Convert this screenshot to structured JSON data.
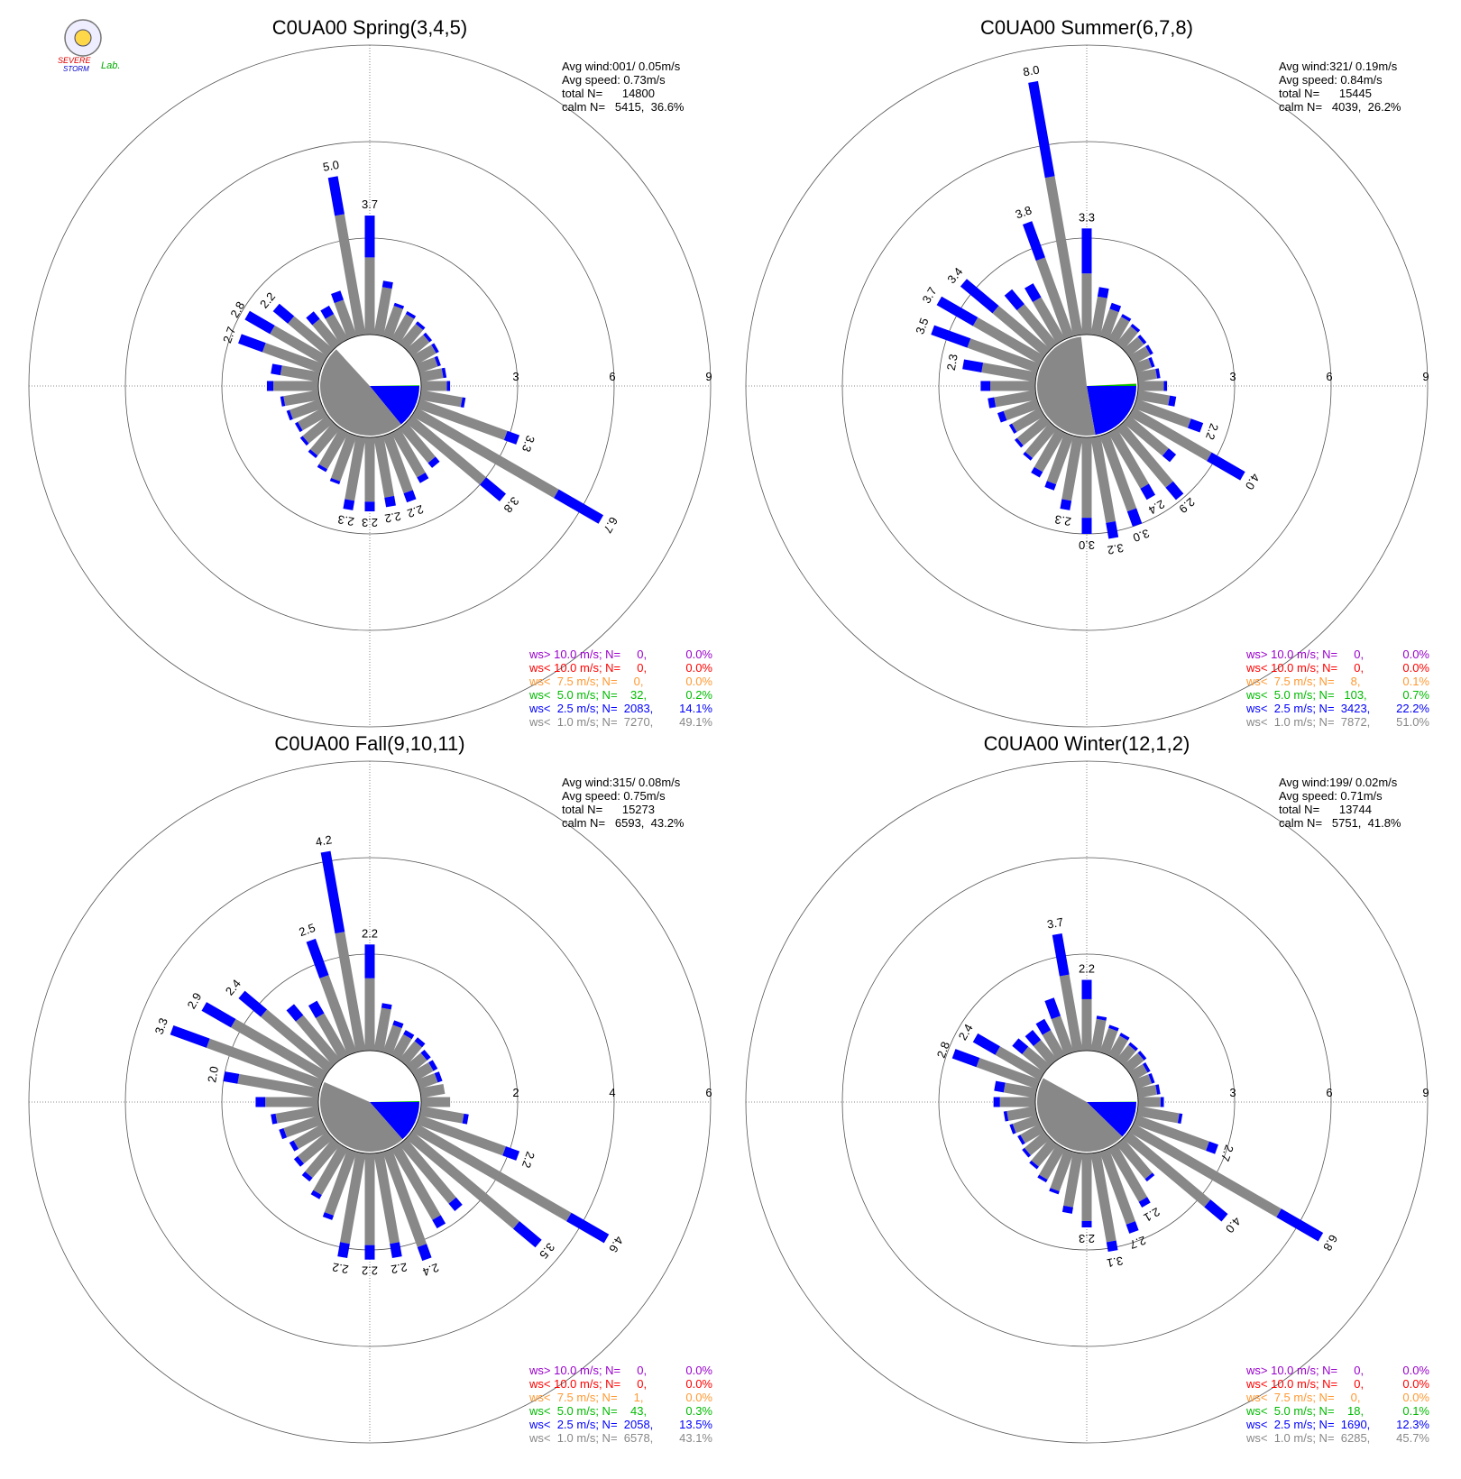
{
  "logo": {
    "line1": "SEVERE",
    "line2": "STORM",
    "line3": "Lab."
  },
  "chart_data": [
    {
      "type": "windrose",
      "title": "C0UA00 Spring(3,4,5)",
      "info": [
        "Avg wind:001/ 0.05m/s",
        "Avg speed: 0.73m/s",
        "total N=      14800",
        "calm N=   5415,  36.6%"
      ],
      "ylim": [
        0,
        9
      ],
      "yticks": [
        3,
        6,
        9
      ],
      "series": [
        {
          "color": "#888888",
          "values": [
            2.4,
            1.5,
            1.0,
            0.9,
            0.8,
            0.7,
            0.7,
            0.6,
            0.7,
            0.8,
            1.3,
            2.9,
            5.1,
            3.0,
            1.4,
            1.6,
            1.9,
            1.9,
            2.0,
            2.0,
            1.5,
            1.3,
            1.1,
            1.0,
            0.9,
            1.0,
            1.1,
            1.4,
            1.2,
            1.9,
            1.9,
            1.6,
            1.0,
            0.9,
            1.2,
            3.8
          ]
        },
        {
          "color": "#0000ff",
          "values": [
            1.3,
            0.2,
            0.1,
            0.1,
            0.1,
            0.1,
            0.1,
            0.1,
            0.1,
            0.1,
            0.1,
            0.4,
            1.6,
            0.8,
            0.2,
            0.2,
            0.3,
            0.3,
            0.3,
            0.3,
            0.1,
            0.1,
            0.1,
            0.1,
            0.1,
            0.1,
            0.1,
            0.2,
            0.3,
            0.8,
            0.9,
            0.6,
            0.3,
            0.3,
            0.3,
            1.2
          ]
        }
      ],
      "bar_labels": [
        "3.7",
        null,
        null,
        null,
        null,
        null,
        null,
        null,
        null,
        null,
        null,
        "3.3",
        "6.7",
        "3.8",
        null,
        null,
        "2.2",
        "2.2",
        "2.3",
        "2.3",
        null,
        null,
        null,
        null,
        null,
        null,
        null,
        null,
        null,
        "2.7",
        "2.8",
        "2.2",
        null,
        null,
        null,
        "5.0"
      ],
      "legend": [
        {
          "text": "ws> 10.0 m/s; N=     0,",
          "percent": 0.0,
          "value_label": "0.0%",
          "color": "#9900cc"
        },
        {
          "text": "ws< 10.0 m/s; N=     0,",
          "percent": 0.0,
          "value_label": "0.0%",
          "color": "#ff0000"
        },
        {
          "text": "ws<  7.5 m/s; N=     0,",
          "percent": 0.0,
          "value_label": "0.0%",
          "color": "#ff9933"
        },
        {
          "text": "ws<  5.0 m/s; N=    32,",
          "percent": 0.2,
          "value_label": "0.2%",
          "color": "#00bb00"
        },
        {
          "text": "ws<  2.5 m/s; N=  2083,",
          "percent": 14.1,
          "value_label": "14.1%",
          "color": "#0000ff"
        },
        {
          "text": "ws<  1.0 m/s; N=  7270,",
          "percent": 49.1,
          "value_label": "49.1%",
          "color": "#888888"
        }
      ]
    },
    {
      "type": "windrose",
      "title": "C0UA00 Summer(6,7,8)",
      "info": [
        "Avg wind:321/ 0.19m/s",
        "Avg speed: 0.84m/s",
        "total N=      15445",
        "calm N=   4039,  26.2%"
      ],
      "ylim": [
        0,
        9
      ],
      "yticks": [
        3,
        6,
        9
      ],
      "series": [
        {
          "color": "#888888",
          "values": [
            1.9,
            1.2,
            0.9,
            0.8,
            0.7,
            0.6,
            0.6,
            0.5,
            0.6,
            0.8,
            1.0,
            1.8,
            2.8,
            1.6,
            2.4,
            2.0,
            2.5,
            2.7,
            2.5,
            2.0,
            1.6,
            1.4,
            1.2,
            1.1,
            1.0,
            1.1,
            1.3,
            1.4,
            1.7,
            2.3,
            2.4,
            2.1,
            1.6,
            1.5,
            2.6,
            5.0
          ]
        },
        {
          "color": "#0000ff",
          "values": [
            1.4,
            0.3,
            0.2,
            0.1,
            0.1,
            0.1,
            0.1,
            0.1,
            0.1,
            0.1,
            0.2,
            0.4,
            1.2,
            0.3,
            0.5,
            0.4,
            0.5,
            0.5,
            0.5,
            0.3,
            0.2,
            0.2,
            0.1,
            0.1,
            0.1,
            0.2,
            0.2,
            0.3,
            0.6,
            1.2,
            1.3,
            1.3,
            0.6,
            0.5,
            1.2,
            3.0
          ]
        }
      ],
      "bar_labels": [
        "3.3",
        null,
        null,
        null,
        null,
        null,
        null,
        null,
        null,
        null,
        null,
        "2.2",
        "4.0",
        null,
        "2.9",
        "2.4",
        "3.0",
        "3.2",
        "3.0",
        "2.3",
        null,
        null,
        null,
        null,
        null,
        null,
        null,
        null,
        "2.3",
        "3.5",
        "3.7",
        "3.4",
        null,
        null,
        "3.8",
        "8.0"
      ],
      "legend": [
        {
          "text": "ws> 10.0 m/s; N=     0,",
          "percent": 0.0,
          "value_label": "0.0%",
          "color": "#9900cc"
        },
        {
          "text": "ws< 10.0 m/s; N=     0,",
          "percent": 0.0,
          "value_label": "0.0%",
          "color": "#ff0000"
        },
        {
          "text": "ws<  7.5 m/s; N=     8,",
          "percent": 0.1,
          "value_label": "0.1%",
          "color": "#ff9933"
        },
        {
          "text": "ws<  5.0 m/s; N=   103,",
          "percent": 0.7,
          "value_label": "0.7%",
          "color": "#00bb00"
        },
        {
          "text": "ws<  2.5 m/s; N=  3423,",
          "percent": 22.2,
          "value_label": "22.2%",
          "color": "#0000ff"
        },
        {
          "text": "ws<  1.0 m/s; N=  7872,",
          "percent": 51.0,
          "value_label": "51.0%",
          "color": "#888888"
        }
      ]
    },
    {
      "type": "windrose",
      "title": "C0UA00 Fall(9,10,11)",
      "info": [
        "Avg wind:315/ 0.08m/s",
        "Avg speed: 0.75m/s",
        "total N=      15273",
        "calm N=   6593,  43.2%"
      ],
      "ylim": [
        0,
        6
      ],
      "yticks": [
        2,
        4,
        6
      ],
      "series": [
        {
          "color": "#888888",
          "values": [
            1.5,
            0.9,
            0.6,
            0.5,
            0.5,
            0.4,
            0.4,
            0.4,
            0.5,
            0.6,
            0.9,
            1.9,
            3.7,
            2.9,
            1.6,
            1.7,
            2.1,
            1.9,
            1.9,
            1.9,
            1.4,
            1.1,
            0.9,
            0.8,
            0.7,
            0.8,
            0.9,
            1.1,
            1.7,
            2.5,
            2.2,
            1.8,
            1.2,
            1.0,
            1.7,
            2.5
          ]
        },
        {
          "color": "#0000ff",
          "values": [
            0.7,
            0.1,
            0.1,
            0.1,
            0.1,
            0.1,
            0.1,
            0.1,
            0.0,
            0.0,
            0.1,
            0.3,
            0.9,
            0.6,
            0.2,
            0.2,
            0.3,
            0.3,
            0.3,
            0.3,
            0.1,
            0.1,
            0.1,
            0.1,
            0.1,
            0.1,
            0.1,
            0.2,
            0.3,
            0.8,
            0.7,
            0.6,
            0.3,
            0.3,
            0.8,
            1.7
          ]
        }
      ],
      "bar_labels": [
        "2.2",
        null,
        null,
        null,
        null,
        null,
        null,
        null,
        null,
        null,
        null,
        "2.2",
        "4.6",
        "3.5",
        null,
        null,
        "2.4",
        "2.2",
        "2.2",
        "2.2",
        null,
        null,
        null,
        null,
        null,
        null,
        null,
        null,
        "2.0",
        "3.3",
        "2.9",
        "2.4",
        null,
        null,
        "2.5",
        "4.2"
      ],
      "legend": [
        {
          "text": "ws> 10.0 m/s; N=     0,",
          "percent": 0.0,
          "value_label": "0.0%",
          "color": "#9900cc"
        },
        {
          "text": "ws< 10.0 m/s; N=     0,",
          "percent": 0.0,
          "value_label": "0.0%",
          "color": "#ff0000"
        },
        {
          "text": "ws<  7.5 m/s; N=     1,",
          "percent": 0.0,
          "value_label": "0.0%",
          "color": "#ff9933"
        },
        {
          "text": "ws<  5.0 m/s; N=    43,",
          "percent": 0.3,
          "value_label": "0.3%",
          "color": "#00bb00"
        },
        {
          "text": "ws<  2.5 m/s; N=  2058,",
          "percent": 13.5,
          "value_label": "13.5%",
          "color": "#0000ff"
        },
        {
          "text": "ws<  1.0 m/s; N=  6578,",
          "percent": 43.1,
          "value_label": "43.1%",
          "color": "#888888"
        }
      ]
    },
    {
      "type": "windrose",
      "title": "C0UA00 Winter(12,1,2)",
      "info": [
        "Avg wind:199/ 0.02m/s",
        "Avg speed: 0.71m/s",
        "total N=      13744",
        "calm N=   5751,  41.8%"
      ],
      "ylim": [
        0,
        9
      ],
      "yticks": [
        3,
        6,
        9
      ],
      "series": [
        {
          "color": "#888888",
          "values": [
            1.6,
            1.0,
            0.8,
            0.7,
            0.6,
            0.6,
            0.5,
            0.5,
            0.6,
            0.7,
            1.3,
            2.4,
            5.3,
            3.3,
            1.4,
            1.9,
            2.4,
            2.8,
            2.1,
            1.7,
            1.3,
            1.1,
            0.9,
            0.8,
            0.7,
            0.8,
            0.9,
            1.1,
            1.0,
            2.0,
            1.6,
            0.9,
            0.8,
            0.9,
            1.2,
            2.4
          ]
        },
        {
          "color": "#0000ff",
          "values": [
            0.6,
            0.1,
            0.1,
            0.1,
            0.1,
            0.1,
            0.1,
            0.1,
            0.1,
            0.1,
            0.1,
            0.3,
            1.5,
            0.7,
            0.1,
            0.2,
            0.3,
            0.3,
            0.2,
            0.2,
            0.1,
            0.1,
            0.1,
            0.1,
            0.1,
            0.1,
            0.1,
            0.2,
            0.3,
            0.8,
            0.8,
            0.4,
            0.4,
            0.4,
            0.6,
            1.3
          ]
        }
      ],
      "bar_labels": [
        "2.2",
        null,
        null,
        null,
        null,
        null,
        null,
        null,
        null,
        null,
        null,
        "2.7",
        "6.8",
        "4.0",
        null,
        "2.1",
        "2.7",
        "3.1",
        "2.3",
        null,
        null,
        null,
        null,
        null,
        null,
        null,
        null,
        null,
        null,
        "2.8",
        "2.4",
        null,
        null,
        null,
        null,
        "3.7"
      ],
      "legend": [
        {
          "text": "ws> 10.0 m/s; N=     0,",
          "percent": 0.0,
          "value_label": "0.0%",
          "color": "#9900cc"
        },
        {
          "text": "ws< 10.0 m/s; N=     0,",
          "percent": 0.0,
          "value_label": "0.0%",
          "color": "#ff0000"
        },
        {
          "text": "ws<  7.5 m/s; N=     0,",
          "percent": 0.0,
          "value_label": "0.0%",
          "color": "#ff9933"
        },
        {
          "text": "ws<  5.0 m/s; N=    18,",
          "percent": 0.1,
          "value_label": "0.1%",
          "color": "#00bb00"
        },
        {
          "text": "ws<  2.5 m/s; N=  1690,",
          "percent": 12.3,
          "value_label": "12.3%",
          "color": "#0000ff"
        },
        {
          "text": "ws<  1.0 m/s; N=  6285,",
          "percent": 45.7,
          "value_label": "45.7%",
          "color": "#888888"
        }
      ]
    }
  ]
}
